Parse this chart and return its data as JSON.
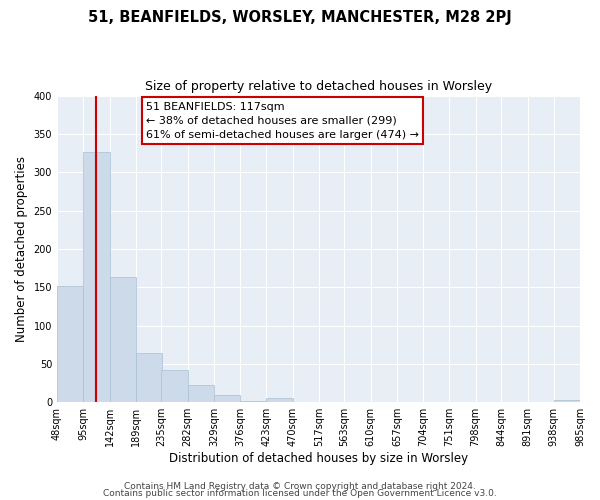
{
  "title": "51, BEANFIELDS, WORSLEY, MANCHESTER, M28 2PJ",
  "subtitle": "Size of property relative to detached houses in Worsley",
  "xlabel": "Distribution of detached houses by size in Worsley",
  "ylabel": "Number of detached properties",
  "bar_edges": [
    48,
    95,
    142,
    189,
    235,
    282,
    329,
    376,
    423,
    470,
    517,
    563,
    610,
    657,
    704,
    751,
    798,
    844,
    891,
    938,
    985
  ],
  "bar_heights": [
    151,
    327,
    163,
    64,
    42,
    22,
    10,
    2,
    5,
    0,
    0,
    0,
    0,
    0,
    0,
    0,
    0,
    0,
    0,
    3
  ],
  "bar_color": "#ccdaea",
  "bar_edge_color": "#a8c0d4",
  "property_line_x": 117,
  "property_line_color": "#cc0000",
  "annotation_line1": "51 BEANFIELDS: 117sqm",
  "annotation_line2": "← 38% of detached houses are smaller (299)",
  "annotation_line3": "61% of semi-detached houses are larger (474) →",
  "annotation_box_facecolor": "#ffffff",
  "annotation_box_edgecolor": "#cc0000",
  "ylim": [
    0,
    400
  ],
  "yticks": [
    0,
    50,
    100,
    150,
    200,
    250,
    300,
    350,
    400
  ],
  "tick_labels": [
    "48sqm",
    "95sqm",
    "142sqm",
    "189sqm",
    "235sqm",
    "282sqm",
    "329sqm",
    "376sqm",
    "423sqm",
    "470sqm",
    "517sqm",
    "563sqm",
    "610sqm",
    "657sqm",
    "704sqm",
    "751sqm",
    "798sqm",
    "844sqm",
    "891sqm",
    "938sqm",
    "985sqm"
  ],
  "footer1": "Contains HM Land Registry data © Crown copyright and database right 2024.",
  "footer2": "Contains public sector information licensed under the Open Government Licence v3.0.",
  "bg_color": "#ffffff",
  "plot_bg_color": "#e8eef5",
  "grid_color": "#ffffff",
  "title_fontsize": 10.5,
  "subtitle_fontsize": 9,
  "axis_label_fontsize": 8.5,
  "tick_fontsize": 7,
  "footer_fontsize": 6.5
}
